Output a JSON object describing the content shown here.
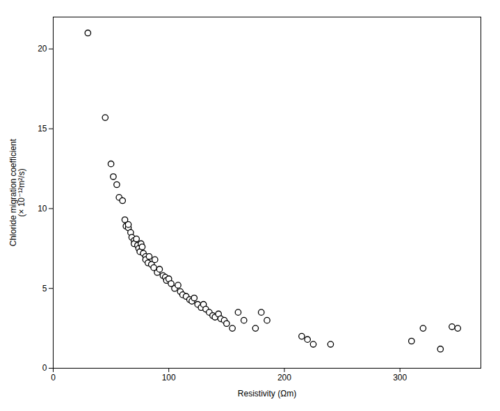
{
  "chart_data": {
    "type": "scatter",
    "xlabel": "Resistivity (Ωm)",
    "ylabel": "Chloride migration coefficient\n(× 10⁻¹²m²/s)",
    "x": [
      30,
      45,
      50,
      52,
      55,
      57,
      60,
      62,
      63,
      65,
      65,
      67,
      68,
      70,
      70,
      72,
      73,
      74,
      75,
      76,
      77,
      78,
      80,
      80,
      82,
      83,
      85,
      87,
      88,
      90,
      92,
      95,
      97,
      98,
      100,
      102,
      105,
      108,
      110,
      112,
      115,
      118,
      120,
      122,
      125,
      128,
      130,
      132,
      135,
      138,
      140,
      143,
      145,
      148,
      150,
      155,
      160,
      165,
      175,
      180,
      185,
      215,
      220,
      225,
      240,
      310,
      320,
      335,
      345,
      350
    ],
    "values": [
      21,
      15.7,
      12.8,
      12.0,
      11.5,
      10.7,
      10.5,
      9.3,
      8.9,
      8.8,
      9.0,
      8.5,
      8.2,
      8.0,
      7.8,
      8.1,
      7.7,
      7.5,
      7.3,
      7.8,
      7.6,
      7.2,
      7.0,
      6.8,
      6.6,
      7.0,
      6.5,
      6.3,
      6.8,
      6.0,
      6.2,
      5.8,
      5.7,
      5.5,
      5.6,
      5.3,
      5.0,
      5.2,
      4.8,
      4.6,
      4.5,
      4.3,
      4.2,
      4.4,
      4.0,
      3.8,
      4.0,
      3.7,
      3.5,
      3.3,
      3.2,
      3.4,
      3.1,
      3.0,
      2.8,
      2.5,
      3.5,
      3.0,
      2.5,
      3.5,
      3.0,
      2.0,
      1.8,
      1.5,
      1.5,
      1.7,
      2.5,
      1.2,
      2.6,
      2.5
    ],
    "xlim": [
      0,
      370
    ],
    "ylim": [
      0,
      22
    ],
    "xticks": [
      0,
      100,
      200,
      300
    ],
    "yticks": [
      0,
      5,
      10,
      15,
      20
    ],
    "color": "black",
    "marker": "hollow",
    "grid": false
  }
}
